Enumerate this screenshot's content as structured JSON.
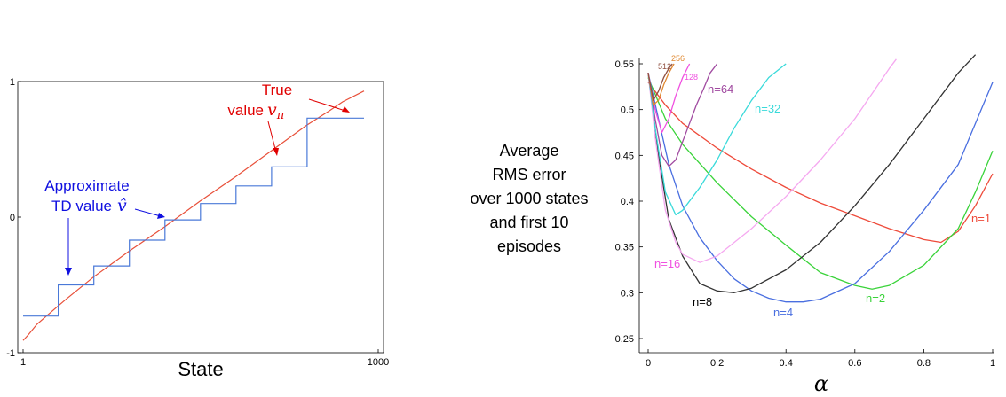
{
  "chart_data": [
    {
      "type": "line",
      "xlabel": "State",
      "xticks": [
        "1",
        "1000"
      ],
      "yticks": [
        "-1",
        "0",
        "1"
      ],
      "xlim": [
        1,
        1000
      ],
      "ylim": [
        -1,
        1
      ],
      "grid": false,
      "series": [
        {
          "key": "true",
          "color": "#e8503a",
          "x": [
            1,
            15,
            40,
            80,
            120,
            200,
            300,
            400,
            500,
            600,
            700,
            800,
            860,
            900,
            960
          ],
          "y": [
            -0.91,
            -0.87,
            -0.79,
            -0.7,
            -0.61,
            -0.44,
            -0.25,
            -0.07,
            0.12,
            0.3,
            0.49,
            0.68,
            0.78,
            0.85,
            0.93
          ]
        },
        {
          "key": "td",
          "color": "#4a79d8",
          "x": [
            1,
            100,
            100,
            200,
            200,
            300,
            300,
            400,
            400,
            500,
            500,
            600,
            600,
            700,
            700,
            800,
            800,
            960
          ],
          "y": [
            -0.73,
            -0.73,
            -0.5,
            -0.5,
            -0.36,
            -0.36,
            -0.17,
            -0.17,
            -0.02,
            -0.02,
            0.1,
            0.1,
            0.23,
            0.23,
            0.37,
            0.37,
            0.73,
            0.73
          ]
        }
      ],
      "annotations": {
        "true_value": {
          "line1": "True",
          "line2": "value",
          "symbol": "v",
          "subscript": "π",
          "color": "#e00000"
        },
        "td_value": {
          "line1": "Approximate",
          "line2": "TD value",
          "symbol": "v̂",
          "color": "#1010e0"
        }
      }
    },
    {
      "type": "line",
      "xlabel": "α",
      "ylabel_lines": [
        "Average",
        "RMS error",
        "over 1000 states",
        "and first 10",
        "episodes"
      ],
      "xticks": [
        "0",
        "0.2",
        "0.4",
        "0.6",
        "0.8",
        "1"
      ],
      "yticks": [
        "0.25",
        "0.3",
        "0.35",
        "0.4",
        "0.45",
        "0.5",
        "0.55"
      ],
      "xlim": [
        0,
        1
      ],
      "ylim": [
        0.25,
        0.55
      ],
      "grid": false,
      "series": [
        {
          "key": "n1",
          "name": "n=1",
          "color": "#ee4a3a",
          "x": [
            0,
            0.05,
            0.1,
            0.2,
            0.3,
            0.4,
            0.5,
            0.6,
            0.7,
            0.8,
            0.85,
            0.9,
            0.95,
            1.0
          ],
          "y": [
            0.53,
            0.505,
            0.485,
            0.458,
            0.435,
            0.415,
            0.398,
            0.384,
            0.37,
            0.358,
            0.355,
            0.367,
            0.395,
            0.43
          ]
        },
        {
          "key": "n2",
          "name": "n=2",
          "color": "#3ad33a",
          "x": [
            0,
            0.05,
            0.1,
            0.2,
            0.3,
            0.4,
            0.5,
            0.6,
            0.65,
            0.7,
            0.8,
            0.9,
            0.95,
            1.0
          ],
          "y": [
            0.535,
            0.49,
            0.462,
            0.42,
            0.383,
            0.352,
            0.322,
            0.308,
            0.304,
            0.308,
            0.33,
            0.37,
            0.41,
            0.455
          ]
        },
        {
          "key": "n4",
          "name": "n=4",
          "color": "#4a6fe0",
          "x": [
            0,
            0.03,
            0.06,
            0.1,
            0.15,
            0.2,
            0.25,
            0.3,
            0.35,
            0.4,
            0.45,
            0.5,
            0.6,
            0.7,
            0.8,
            0.9,
            1.0
          ],
          "y": [
            0.54,
            0.49,
            0.44,
            0.395,
            0.36,
            0.335,
            0.315,
            0.302,
            0.294,
            0.29,
            0.29,
            0.293,
            0.31,
            0.345,
            0.39,
            0.44,
            0.53
          ]
        },
        {
          "key": "n8",
          "name": "n=8",
          "color": "#333333",
          "x": [
            0,
            0.03,
            0.06,
            0.1,
            0.15,
            0.2,
            0.25,
            0.3,
            0.4,
            0.5,
            0.6,
            0.7,
            0.8,
            0.9,
            0.95
          ],
          "y": [
            0.54,
            0.45,
            0.38,
            0.34,
            0.31,
            0.302,
            0.3,
            0.305,
            0.325,
            0.355,
            0.395,
            0.44,
            0.49,
            0.54,
            0.56
          ]
        },
        {
          "key": "n16",
          "name": "n=16",
          "color": "#f5a8f0",
          "x": [
            0,
            0.02,
            0.05,
            0.08,
            0.1,
            0.15,
            0.2,
            0.3,
            0.4,
            0.5,
            0.6,
            0.7,
            0.72
          ],
          "y": [
            0.54,
            0.47,
            0.39,
            0.355,
            0.342,
            0.333,
            0.34,
            0.37,
            0.405,
            0.445,
            0.49,
            0.545,
            0.555
          ]
        },
        {
          "key": "n32",
          "name": "n=32",
          "color": "#3adada",
          "x": [
            0,
            0.02,
            0.05,
            0.08,
            0.1,
            0.15,
            0.2,
            0.25,
            0.3,
            0.35,
            0.4
          ],
          "y": [
            0.54,
            0.48,
            0.41,
            0.385,
            0.39,
            0.415,
            0.445,
            0.48,
            0.51,
            0.535,
            0.55
          ]
        },
        {
          "key": "n64",
          "name": "n=64",
          "color": "#a04aa0",
          "x": [
            0,
            0.02,
            0.04,
            0.06,
            0.08,
            0.1,
            0.12,
            0.14,
            0.16,
            0.18,
            0.2
          ],
          "y": [
            0.54,
            0.49,
            0.45,
            0.438,
            0.445,
            0.465,
            0.485,
            0.505,
            0.522,
            0.54,
            0.55
          ]
        },
        {
          "key": "n128",
          "name": "128",
          "color": "#f050e0",
          "x": [
            0,
            0.02,
            0.04,
            0.06,
            0.08,
            0.1,
            0.12
          ],
          "y": [
            0.54,
            0.5,
            0.475,
            0.49,
            0.515,
            0.535,
            0.55
          ]
        },
        {
          "key": "n256",
          "name": "256",
          "color": "#e08830",
          "x": [
            0,
            0.015,
            0.03,
            0.045,
            0.06,
            0.075
          ],
          "y": [
            0.54,
            0.505,
            0.51,
            0.527,
            0.54,
            0.55
          ]
        },
        {
          "key": "n512",
          "name": "512",
          "color": "#905040",
          "x": [
            0,
            0.015,
            0.03,
            0.045,
            0.06,
            0.07
          ],
          "y": [
            0.54,
            0.51,
            0.52,
            0.535,
            0.545,
            0.55
          ]
        }
      ]
    }
  ]
}
